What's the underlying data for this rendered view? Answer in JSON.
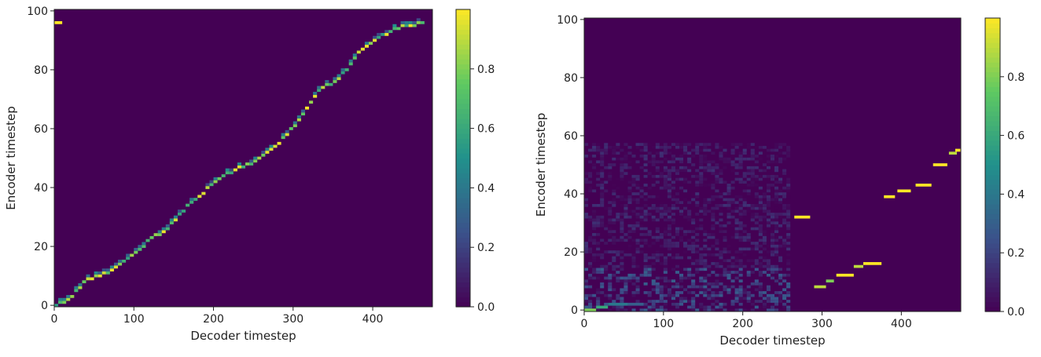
{
  "chart_data": [
    {
      "type": "heatmap",
      "title": "",
      "xlabel": "Decoder timestep",
      "ylabel": "Encoder timestep",
      "xlim": [
        0,
        475
      ],
      "ylim": [
        -0.5,
        100.5
      ],
      "xticks": [
        "0",
        "100",
        "200",
        "300",
        "400"
      ],
      "yticks": [
        "0",
        "20",
        "40",
        "60",
        "80",
        "100"
      ],
      "colorbar": {
        "range": [
          0,
          1
        ],
        "ticks": [
          "0.0",
          "0.2",
          "0.4",
          "0.6",
          "0.8"
        ]
      },
      "colormap": [
        "#440154",
        "#3b528b",
        "#21918c",
        "#5ec962",
        "#fde725"
      ],
      "alignment_path": [
        [
          0,
          0
        ],
        [
          10,
          1
        ],
        [
          20,
          3
        ],
        [
          30,
          6
        ],
        [
          40,
          9
        ],
        [
          55,
          10
        ],
        [
          70,
          12
        ],
        [
          90,
          16
        ],
        [
          105,
          19
        ],
        [
          120,
          23
        ],
        [
          135,
          25
        ],
        [
          150,
          29
        ],
        [
          165,
          34
        ],
        [
          180,
          37
        ],
        [
          195,
          41
        ],
        [
          210,
          44
        ],
        [
          225,
          46
        ],
        [
          245,
          48
        ],
        [
          260,
          51
        ],
        [
          275,
          54
        ],
        [
          290,
          58
        ],
        [
          305,
          63
        ],
        [
          320,
          69
        ],
        [
          330,
          73
        ],
        [
          350,
          76
        ],
        [
          365,
          80
        ],
        [
          380,
          86
        ],
        [
          400,
          90
        ],
        [
          420,
          93
        ],
        [
          440,
          95
        ],
        [
          465,
          96
        ]
      ],
      "outliers": [
        [
          0,
          10,
          96,
          1.0
        ]
      ]
    },
    {
      "type": "heatmap",
      "title": "",
      "xlabel": "Decoder timestep",
      "ylabel": "Encoder timestep",
      "xlim": [
        0,
        475
      ],
      "ylim": [
        -0.5,
        100.5
      ],
      "xticks": [
        "0",
        "100",
        "200",
        "300",
        "400"
      ],
      "yticks": [
        "0",
        "20",
        "40",
        "60",
        "80",
        "100"
      ],
      "colorbar": {
        "range": [
          0,
          1
        ],
        "ticks": [
          "0.0",
          "0.2",
          "0.4",
          "0.6",
          "0.8"
        ]
      },
      "colormap": [
        "#440154",
        "#3b528b",
        "#21918c",
        "#5ec962",
        "#fde725"
      ],
      "segments": [
        [
          0,
          15,
          0,
          0.8
        ],
        [
          15,
          30,
          1,
          0.6
        ],
        [
          30,
          55,
          2,
          0.4
        ],
        [
          55,
          75,
          2,
          0.3
        ],
        [
          265,
          285,
          32,
          1.0
        ],
        [
          290,
          305,
          8,
          0.9
        ],
        [
          305,
          315,
          10,
          0.8
        ],
        [
          318,
          340,
          12,
          1.0
        ],
        [
          340,
          352,
          15,
          0.9
        ],
        [
          352,
          375,
          16,
          1.0
        ],
        [
          378,
          392,
          39,
          1.0
        ],
        [
          395,
          412,
          41,
          1.0
        ],
        [
          418,
          438,
          43,
          1.0
        ],
        [
          440,
          458,
          50,
          1.0
        ],
        [
          460,
          470,
          54,
          0.9
        ],
        [
          468,
          475,
          55,
          1.0
        ]
      ],
      "noise_region": {
        "x": [
          0,
          260
        ],
        "y": [
          0,
          57
        ],
        "max_level": 0.3
      }
    }
  ]
}
